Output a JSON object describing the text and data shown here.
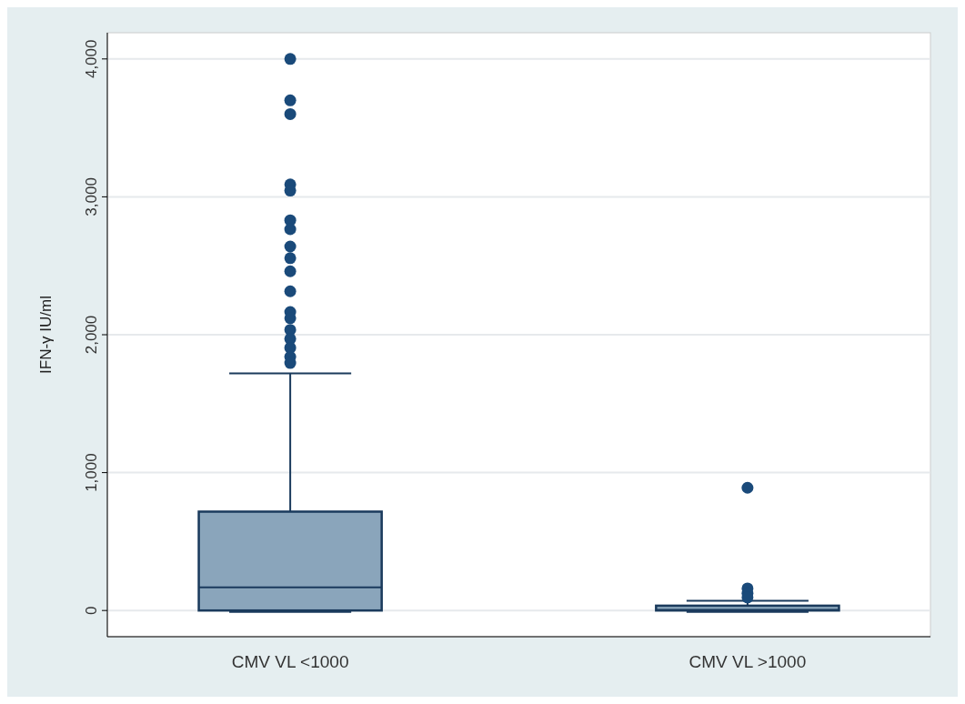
{
  "chart_data": {
    "type": "box",
    "ylabel": "IFN-γ IU/ml",
    "categories": [
      "CMV VL <1000",
      "CMV VL >1000"
    ],
    "boxes": [
      {
        "low": 0,
        "q1": 0,
        "median": 168,
        "q3": 717,
        "high": 1719,
        "outliers": [
          4000,
          3700,
          3600,
          3090,
          3045,
          2830,
          2765,
          2640,
          2555,
          2460,
          2315,
          2165,
          2120,
          2035,
          1970,
          1905,
          1840,
          1795
        ]
      },
      {
        "low": 0,
        "q1": 0,
        "median": 5,
        "q3": 35,
        "high": 71,
        "outliers": [
          890,
          160,
          125,
          95
        ]
      }
    ],
    "color": "#8aa5bb",
    "ylim": [
      -190,
      4190
    ],
    "yticks": [
      {
        "value": 0,
        "label": "0"
      },
      {
        "value": 1000,
        "label": "1,000"
      },
      {
        "value": 2000,
        "label": "2,000"
      },
      {
        "value": 3000,
        "label": "3,000"
      },
      {
        "value": 4000,
        "label": "4,000"
      }
    ],
    "grid": "y"
  }
}
